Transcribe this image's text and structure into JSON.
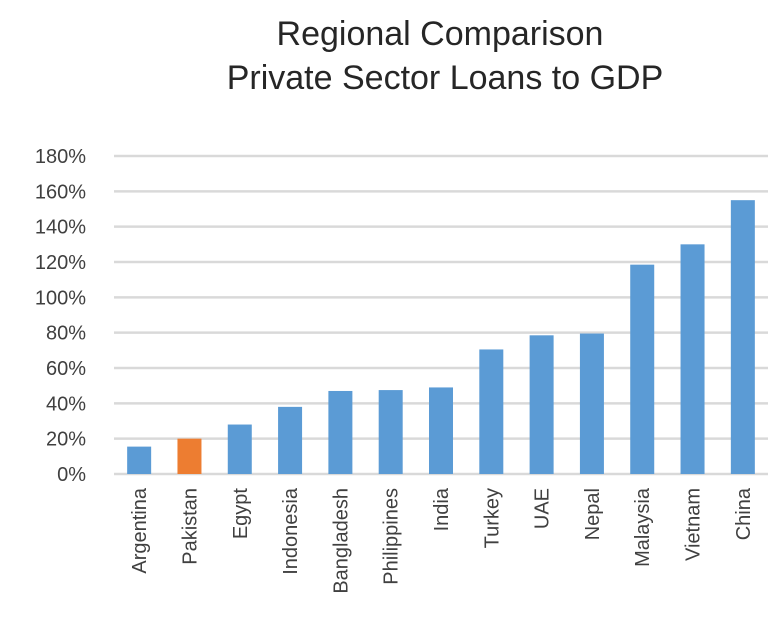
{
  "chart_data": {
    "type": "bar",
    "title": [
      "Regional Comparison",
      "Private Sector Loans to GDP"
    ],
    "xlabel": "",
    "ylabel": "",
    "ylim": [
      0,
      180
    ],
    "yticks": [
      "0%",
      "20%",
      "40%",
      "60%",
      "80%",
      "100%",
      "120%",
      "140%",
      "160%",
      "180%"
    ],
    "grid": true,
    "categories": [
      "Argentina",
      "Pakistan",
      "Egypt",
      "Indonesia",
      "Bangladesh",
      "Philippines",
      "India",
      "Turkey",
      "UAE",
      "Nepal",
      "Malaysia",
      "Vietnam",
      "China"
    ],
    "values": [
      15.5,
      20,
      28,
      38,
      47,
      47.5,
      49,
      70.5,
      78.5,
      79.5,
      118.5,
      130,
      155
    ],
    "colors": {
      "default": "#5b9bd5",
      "highlight": "#ed7d31",
      "grid": "#d9d9d9"
    },
    "highlight_category": "Pakistan"
  }
}
